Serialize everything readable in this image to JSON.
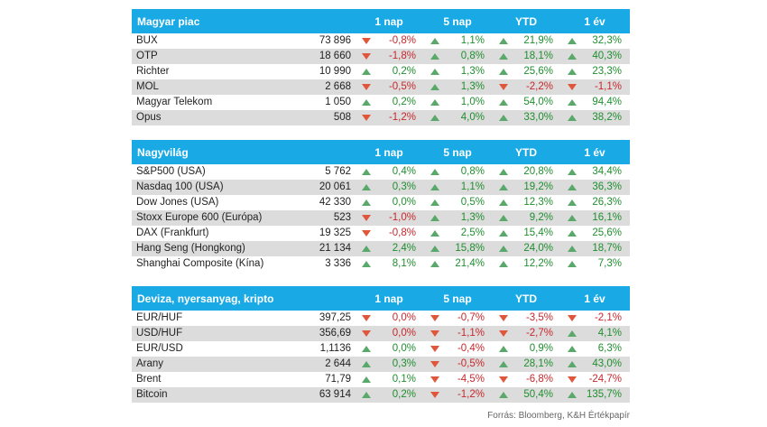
{
  "columns": [
    "1 nap",
    "5 nap",
    "YTD",
    "1 év"
  ],
  "sections": [
    {
      "title": "Magyar piac",
      "rows": [
        {
          "name": "BUX",
          "price": "73 896",
          "changes": [
            [
              "-0,8%",
              "down"
            ],
            [
              "1,1%",
              "up"
            ],
            [
              "21,9%",
              "up"
            ],
            [
              "32,3%",
              "up"
            ]
          ]
        },
        {
          "name": "OTP",
          "price": "18 660",
          "changes": [
            [
              "-1,8%",
              "down"
            ],
            [
              "0,8%",
              "up"
            ],
            [
              "18,1%",
              "up"
            ],
            [
              "40,3%",
              "up"
            ]
          ]
        },
        {
          "name": "Richter",
          "price": "10 990",
          "changes": [
            [
              "0,2%",
              "up"
            ],
            [
              "1,3%",
              "up"
            ],
            [
              "25,6%",
              "up"
            ],
            [
              "23,3%",
              "up"
            ]
          ]
        },
        {
          "name": "MOL",
          "price": "2 668",
          "changes": [
            [
              "-0,5%",
              "down"
            ],
            [
              "1,3%",
              "up"
            ],
            [
              "-2,2%",
              "down"
            ],
            [
              "-1,1%",
              "down"
            ]
          ]
        },
        {
          "name": "Magyar Telekom",
          "price": "1 050",
          "changes": [
            [
              "0,2%",
              "up"
            ],
            [
              "1,0%",
              "up"
            ],
            [
              "54,0%",
              "up"
            ],
            [
              "94,4%",
              "up"
            ]
          ]
        },
        {
          "name": "Opus",
          "price": "508",
          "changes": [
            [
              "-1,2%",
              "down"
            ],
            [
              "4,0%",
              "up"
            ],
            [
              "33,0%",
              "up"
            ],
            [
              "38,2%",
              "up"
            ]
          ]
        }
      ]
    },
    {
      "title": "Nagyvilág",
      "rows": [
        {
          "name": "S&P500 (USA)",
          "price": "5 762",
          "changes": [
            [
              "0,4%",
              "up"
            ],
            [
              "0,8%",
              "up"
            ],
            [
              "20,8%",
              "up"
            ],
            [
              "34,4%",
              "up"
            ]
          ]
        },
        {
          "name": "Nasdaq 100 (USA)",
          "price": "20 061",
          "changes": [
            [
              "0,3%",
              "up"
            ],
            [
              "1,1%",
              "up"
            ],
            [
              "19,2%",
              "up"
            ],
            [
              "36,3%",
              "up"
            ]
          ]
        },
        {
          "name": "Dow Jones (USA)",
          "price": "42 330",
          "changes": [
            [
              "0,0%",
              "up"
            ],
            [
              "0,5%",
              "up"
            ],
            [
              "12,3%",
              "up"
            ],
            [
              "26,3%",
              "up"
            ]
          ]
        },
        {
          "name": "Stoxx Europe 600 (Európa)",
          "price": "523",
          "changes": [
            [
              "-1,0%",
              "down"
            ],
            [
              "1,3%",
              "up"
            ],
            [
              "9,2%",
              "up"
            ],
            [
              "16,1%",
              "up"
            ]
          ]
        },
        {
          "name": "DAX (Frankfurt)",
          "price": "19 325",
          "changes": [
            [
              "-0,8%",
              "down"
            ],
            [
              "2,5%",
              "up"
            ],
            [
              "15,4%",
              "up"
            ],
            [
              "25,6%",
              "up"
            ]
          ]
        },
        {
          "name": "Hang Seng (Hongkong)",
          "price": "21 134",
          "changes": [
            [
              "2,4%",
              "up"
            ],
            [
              "15,8%",
              "up"
            ],
            [
              "24,0%",
              "up"
            ],
            [
              "18,7%",
              "up"
            ]
          ]
        },
        {
          "name": "Shanghai Composite (Kína)",
          "price": "3 336",
          "changes": [
            [
              "8,1%",
              "up"
            ],
            [
              "21,4%",
              "up"
            ],
            [
              "12,2%",
              "up"
            ],
            [
              "7,3%",
              "up"
            ]
          ]
        }
      ]
    },
    {
      "title": "Deviza, nyersanyag, kripto",
      "rows": [
        {
          "name": "EUR/HUF",
          "price": "397,25",
          "changes": [
            [
              "0,0%",
              "down"
            ],
            [
              "-0,7%",
              "down"
            ],
            [
              "-3,5%",
              "down"
            ],
            [
              "-2,1%",
              "down"
            ]
          ]
        },
        {
          "name": "USD/HUF",
          "price": "356,69",
          "changes": [
            [
              "0,0%",
              "down"
            ],
            [
              "-1,1%",
              "down"
            ],
            [
              "-2,7%",
              "down"
            ],
            [
              "4,1%",
              "up"
            ]
          ]
        },
        {
          "name": "EUR/USD",
          "price": "1,1136",
          "changes": [
            [
              "0,0%",
              "up"
            ],
            [
              "-0,4%",
              "down"
            ],
            [
              "0,9%",
              "up"
            ],
            [
              "6,3%",
              "up"
            ]
          ]
        },
        {
          "name": "Arany",
          "price": "2 644",
          "changes": [
            [
              "0,3%",
              "up"
            ],
            [
              "-0,5%",
              "down"
            ],
            [
              "28,1%",
              "up"
            ],
            [
              "43,0%",
              "up"
            ]
          ]
        },
        {
          "name": "Brent",
          "price": "71,79",
          "changes": [
            [
              "0,1%",
              "up"
            ],
            [
              "-4,5%",
              "down"
            ],
            [
              "-6,8%",
              "down"
            ],
            [
              "-24,7%",
              "down"
            ]
          ]
        },
        {
          "name": "Bitcoin",
          "price": "63 914",
          "changes": [
            [
              "0,2%",
              "up"
            ],
            [
              "-1,2%",
              "down"
            ],
            [
              "50,4%",
              "up"
            ],
            [
              "135,7%",
              "up"
            ]
          ]
        }
      ]
    }
  ],
  "source": "Forrás: Bloomberg, K&H Értékpapír",
  "colors": {
    "header": "#19a9e5",
    "stripe": "#dcdcdc",
    "up": "#1f8f2e",
    "down": "#c8282c"
  }
}
